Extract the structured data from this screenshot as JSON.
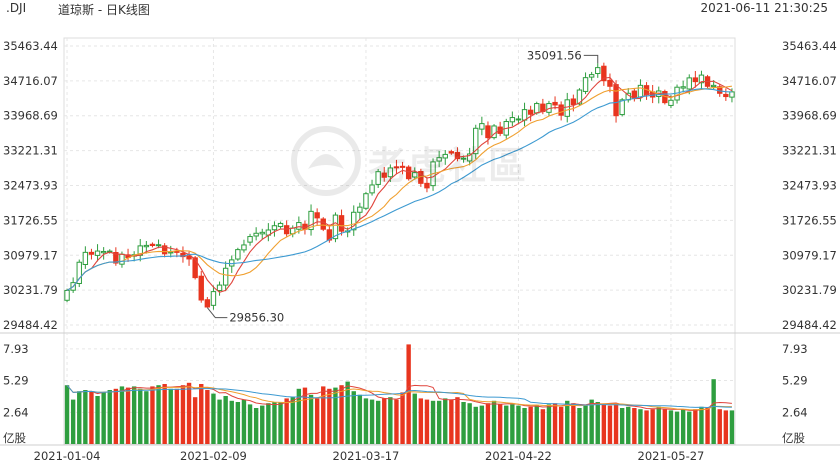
{
  "header": {
    "symbol": ".DJI",
    "title": "道琼斯 - 日K线图",
    "timestamp": "2021-06-11 21:30:25"
  },
  "watermark": {
    "text": "老虎社區",
    "icon": "tiger-logo-icon"
  },
  "colors": {
    "up": "#2e9e3f",
    "down": "#e8351f",
    "ma5": "#e0443c",
    "ma10": "#f0a030",
    "ma20": "#3d9ad1",
    "grid": "#e6e6e6",
    "text": "#333333"
  },
  "chart_data": [
    {
      "type": "candlestick",
      "name": "price",
      "y_ticks": [
        "35463.44",
        "34716.07",
        "33968.69",
        "33221.31",
        "32473.93",
        "31726.55",
        "30979.17",
        "30231.79",
        "29484.42"
      ],
      "ylim": [
        29484.42,
        35463.44
      ],
      "annotations": [
        {
          "text": "35091.56",
          "date_index": 87,
          "value": 35091.56
        },
        {
          "text": "29856.30",
          "date_index": 23,
          "value": 29856.3
        }
      ],
      "x_ticks": [
        {
          "label": "2021-01-04",
          "index": 0
        },
        {
          "label": "2021-02-09",
          "index": 24
        },
        {
          "label": "2021-03-17",
          "index": 49
        },
        {
          "label": "2021-04-22",
          "index": 74
        },
        {
          "label": "2021-05-27",
          "index": 99
        }
      ],
      "closes": [
        30224,
        30392,
        30829,
        31041,
        31000,
        31069,
        31060,
        31068,
        30812,
        31000,
        30930,
        30990,
        31180,
        31190,
        31188,
        31205,
        31010,
        31050,
        31050,
        30950,
        30900,
        30500,
        30020,
        29870,
        30200,
        30340,
        30700,
        30880,
        31100,
        31200,
        31380,
        31450,
        31470,
        31520,
        31612,
        31661,
        31440,
        31561,
        31680,
        31536,
        31920,
        31780,
        31537,
        31305,
        31840,
        31495,
        31500,
        31900,
        32010,
        32298,
        32485,
        32770,
        32650,
        32850,
        32855,
        32862,
        32620,
        32750,
        32520,
        32423,
        32980,
        33070,
        33140,
        33170,
        33050,
        33060,
        33150,
        33700,
        33800,
        33500,
        33750,
        33590,
        33845,
        33930,
        33900,
        34100,
        34000,
        34230,
        34060,
        34230,
        34200,
        33980,
        34310,
        34210,
        34520,
        34785,
        34850,
        35000,
        34720,
        34600,
        33970,
        34310,
        34450,
        34350,
        34620,
        34420,
        34370,
        34500,
        34250,
        34300,
        34580,
        34590,
        34780,
        34700,
        34840,
        34600,
        34620,
        34450,
        34380,
        34480
      ],
      "candles_shown": 110
    },
    {
      "type": "bar",
      "name": "volume",
      "unit": "亿股",
      "y_ticks": [
        "7.93",
        "5.29",
        "2.64"
      ],
      "ylim": [
        0,
        8.5
      ],
      "values": [
        4.9,
        3.7,
        4.4,
        4.5,
        4.4,
        4.0,
        4.3,
        4.5,
        4.6,
        4.8,
        4.7,
        4.8,
        4.6,
        4.4,
        4.8,
        4.9,
        5.0,
        4.6,
        4.6,
        4.9,
        5.1,
        3.9,
        5.0,
        4.5,
        4.2,
        3.7,
        4.0,
        3.6,
        3.5,
        3.7,
        3.3,
        3.0,
        3.2,
        3.4,
        3.5,
        3.5,
        3.8,
        3.9,
        4.6,
        4.7,
        4.1,
        3.8,
        4.8,
        4.6,
        4.7,
        4.9,
        5.2,
        4.4,
        4.1,
        3.8,
        3.7,
        3.6,
        3.8,
        3.9,
        3.7,
        4.3,
        8.3,
        4.2,
        3.8,
        3.7,
        3.6,
        3.6,
        3.8,
        3.7,
        3.9,
        3.5,
        3.4,
        3.1,
        3.2,
        3.4,
        3.6,
        3.3,
        3.2,
        3.3,
        3.2,
        3.0,
        3.1,
        3.2,
        2.9,
        3.3,
        3.4,
        3.1,
        3.6,
        3.4,
        3.0,
        3.2,
        3.7,
        3.5,
        3.3,
        3.2,
        3.4,
        3.0,
        3.1,
        3.0,
        2.9,
        2.8,
        2.9,
        3.1,
        2.9,
        2.8,
        2.7,
        2.9,
        2.7,
        2.9,
        3.1,
        3.0,
        5.4,
        2.9,
        2.8,
        2.8
      ]
    }
  ]
}
